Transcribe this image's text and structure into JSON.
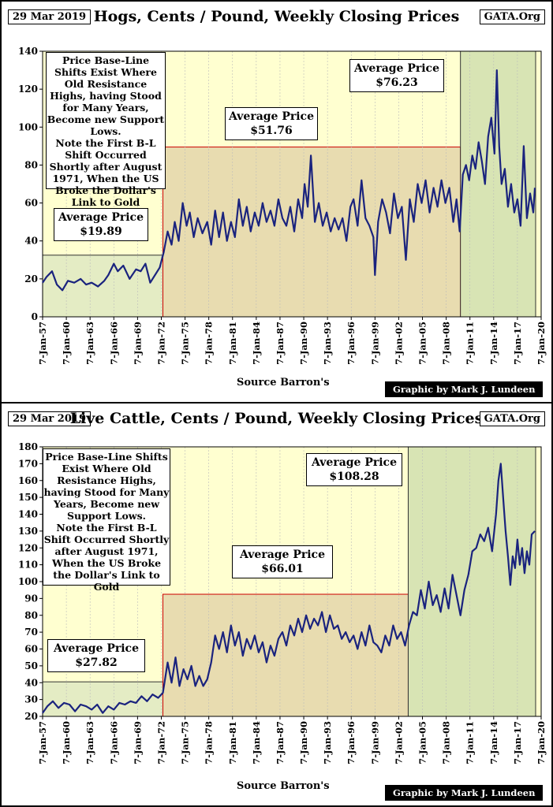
{
  "chart_data": [
    {
      "type": "line",
      "title": "Hogs, Cents / Pound, Weekly Closing Prices",
      "date_label": "29 Mar 2019",
      "site_label": "GATA.Org",
      "ylim": [
        0,
        140
      ],
      "yticks": [
        0,
        20,
        40,
        60,
        80,
        100,
        120,
        140
      ],
      "xlim": [
        1957,
        2020
      ],
      "xticks": [
        "7-Jan-57",
        "7-Jan-60",
        "7-Jan-63",
        "7-Jan-66",
        "7-Jan-69",
        "7-Jan-72",
        "7-Jan-75",
        "7-Jan-78",
        "7-Jan-81",
        "7-Jan-84",
        "7-Jan-87",
        "7-Jan-90",
        "7-Jan-93",
        "7-Jan-96",
        "7-Jan-99",
        "7-Jan-02",
        "7-Jan-05",
        "7-Jan-08",
        "7-Jan-11",
        "7-Jan-14",
        "7-Jan-17",
        "7-Jan-20"
      ],
      "xlabel": "Source Barron's",
      "credit": "Graphic by Mark J. Lundeen",
      "note": "Price Base-Line Shifts Exist Where Old Resistance Highs, having Stood for Many Years, Become new Support Lows.\nNote the First B-L Shift Occurred Shortly after August 1971, When the US Broke the Dollar's Link to Gold",
      "regions": [
        {
          "label": "Average Price",
          "value": "$19.89",
          "x0": 1957,
          "x1": 1972.2,
          "top": 32.5,
          "color": "#e4ecc4"
        },
        {
          "label": "Average Price",
          "value": "$51.76",
          "x0": 1972.2,
          "x1": 2009.8,
          "top": 89.5,
          "color": "#e8dcb0"
        },
        {
          "label": "Average Price",
          "value": "$76.23",
          "x0": 2009.8,
          "x1": 2019.3,
          "top": 140,
          "color": "#d8e4b4"
        }
      ],
      "series": [
        {
          "color": "#1a237e",
          "x": [
            1957,
            1957.5,
            1958.2,
            1958.8,
            1959.5,
            1960.2,
            1961,
            1961.8,
            1962.5,
            1963.2,
            1964,
            1964.8,
            1965.3,
            1966,
            1966.5,
            1967.2,
            1968,
            1968.8,
            1969.4,
            1970,
            1970.6,
            1971.2,
            1971.8,
            1972.3,
            1972.8,
            1973.3,
            1973.7,
            1974.2,
            1974.7,
            1975.2,
            1975.6,
            1976.1,
            1976.6,
            1977.2,
            1977.8,
            1978.3,
            1978.8,
            1979.3,
            1979.8,
            1980.3,
            1980.8,
            1981.3,
            1981.8,
            1982.3,
            1982.8,
            1983.3,
            1983.8,
            1984.3,
            1984.8,
            1985.3,
            1985.8,
            1986.3,
            1986.8,
            1987.3,
            1987.8,
            1988.3,
            1988.8,
            1989.3,
            1989.8,
            1990.1,
            1990.5,
            1990.9,
            1991.4,
            1991.9,
            1992.4,
            1992.9,
            1993.4,
            1993.9,
            1994.4,
            1994.9,
            1995.4,
            1995.9,
            1996.3,
            1996.8,
            1997.3,
            1997.8,
            1998.3,
            1998.8,
            1999.0,
            1999.4,
            1999.9,
            2000.4,
            2000.9,
            2001.4,
            2001.9,
            2002.4,
            2002.9,
            2003.4,
            2003.9,
            2004.4,
            2004.9,
            2005.4,
            2005.9,
            2006.4,
            2006.9,
            2007.4,
            2007.9,
            2008.4,
            2008.9,
            2009.3,
            2009.7,
            2010.1,
            2010.5,
            2010.9,
            2011.3,
            2011.7,
            2012.1,
            2012.5,
            2012.9,
            2013.3,
            2013.7,
            2014.1,
            2014.4,
            2014.7,
            2015.0,
            2015.4,
            2015.8,
            2016.2,
            2016.6,
            2017.0,
            2017.4,
            2017.8,
            2018.2,
            2018.6,
            2019.0,
            2019.2
          ],
          "y": [
            18,
            21,
            24,
            17,
            14,
            19,
            18,
            20,
            17,
            18,
            16,
            19,
            22,
            28,
            24,
            27,
            20,
            25,
            24,
            28,
            18,
            22,
            26,
            34,
            45,
            38,
            50,
            40,
            60,
            48,
            55,
            42,
            52,
            44,
            50,
            38,
            56,
            42,
            55,
            40,
            50,
            42,
            62,
            48,
            58,
            45,
            55,
            48,
            60,
            50,
            56,
            48,
            62,
            52,
            48,
            58,
            45,
            62,
            52,
            70,
            58,
            85,
            50,
            60,
            48,
            55,
            45,
            52,
            46,
            52,
            40,
            58,
            62,
            48,
            72,
            52,
            48,
            42,
            22,
            50,
            62,
            55,
            44,
            65,
            52,
            58,
            30,
            62,
            50,
            70,
            60,
            72,
            55,
            68,
            58,
            72,
            60,
            68,
            50,
            62,
            45,
            75,
            80,
            72,
            85,
            78,
            92,
            82,
            70,
            95,
            105,
            86,
            130,
            90,
            70,
            78,
            58,
            70,
            55,
            62,
            48,
            90,
            52,
            65,
            55,
            68
          ]
        }
      ]
    },
    {
      "type": "line",
      "title": "Live Cattle, Cents / Pound, Weekly Closing Prices",
      "date_label": "29 Mar 2019",
      "site_label": "GATA.Org",
      "ylim": [
        20,
        180
      ],
      "yticks": [
        20,
        30,
        40,
        50,
        60,
        70,
        80,
        90,
        100,
        110,
        120,
        130,
        140,
        150,
        160,
        170,
        180
      ],
      "xlim": [
        1957,
        2020
      ],
      "xticks": [
        "7-Jan-57",
        "7-Jan-60",
        "7-Jan-63",
        "7-Jan-66",
        "7-Jan-69",
        "7-Jan-72",
        "7-Jan-75",
        "7-Jan-78",
        "7-Jan-81",
        "7-Jan-84",
        "7-Jan-87",
        "7-Jan-90",
        "7-Jan-93",
        "7-Jan-96",
        "7-Jan-99",
        "7-Jan-02",
        "7-Jan-05",
        "7-Jan-08",
        "7-Jan-11",
        "7-Jan-14",
        "7-Jan-17",
        "7-Jan-20"
      ],
      "xlabel": "Source Barron's",
      "credit": "Graphic by Mark J. Lundeen",
      "note": "Price Base-Line Shifts Exist Where Old Resistance Highs, having Stood for Many Years, Become new Support Lows.\nNote the First B-L Shift Occurred Shortly after August 1971, When the US Broke the Dollar's Link to Gold",
      "regions": [
        {
          "label": "Average Price",
          "value": "$27.82",
          "x0": 1957,
          "x1": 1972.2,
          "top": 40.5,
          "color": "#e4ecc4"
        },
        {
          "label": "Average Price",
          "value": "$66.01",
          "x0": 1972.2,
          "x1": 2003.2,
          "top": 92.5,
          "color": "#e8dcb0"
        },
        {
          "label": "Average Price",
          "value": "$108.28",
          "x0": 2003.2,
          "x1": 2019.3,
          "top": 180,
          "color": "#d8e4b4"
        }
      ],
      "series": [
        {
          "color": "#1a237e",
          "x": [
            1957,
            1957.6,
            1958.3,
            1959,
            1959.7,
            1960.4,
            1961.1,
            1961.8,
            1962.5,
            1963.2,
            1963.9,
            1964.6,
            1965.3,
            1966,
            1966.7,
            1967.4,
            1968.1,
            1968.8,
            1969.5,
            1970.2,
            1970.9,
            1971.6,
            1972.2,
            1972.8,
            1973.3,
            1973.8,
            1974.3,
            1974.8,
            1975.3,
            1975.8,
            1976.3,
            1976.8,
            1977.3,
            1977.8,
            1978.3,
            1978.8,
            1979.3,
            1979.8,
            1980.3,
            1980.8,
            1981.3,
            1981.8,
            1982.3,
            1982.8,
            1983.3,
            1983.8,
            1984.3,
            1984.8,
            1985.3,
            1985.8,
            1986.3,
            1986.8,
            1987.3,
            1987.8,
            1988.3,
            1988.8,
            1989.3,
            1989.8,
            1990.3,
            1990.8,
            1991.3,
            1991.8,
            1992.3,
            1992.8,
            1993.3,
            1993.8,
            1994.3,
            1994.8,
            1995.3,
            1995.8,
            1996.3,
            1996.8,
            1997.3,
            1997.8,
            1998.3,
            1998.8,
            1999.3,
            1999.8,
            2000.3,
            2000.8,
            2001.3,
            2001.8,
            2002.3,
            2002.8,
            2003.3,
            2003.8,
            2004.3,
            2004.8,
            2005.3,
            2005.8,
            2006.3,
            2006.8,
            2007.3,
            2007.8,
            2008.3,
            2008.8,
            2009.3,
            2009.8,
            2010.3,
            2010.8,
            2011.3,
            2011.8,
            2012.3,
            2012.8,
            2013.3,
            2013.8,
            2014.3,
            2014.6,
            2014.9,
            2015.2,
            2015.5,
            2015.8,
            2016.1,
            2016.4,
            2016.7,
            2017.0,
            2017.3,
            2017.6,
            2017.9,
            2018.2,
            2018.5,
            2018.8,
            2019.2
          ],
          "y": [
            22,
            26,
            29,
            25,
            28,
            27,
            23,
            27,
            26,
            24,
            27,
            22,
            26,
            24,
            28,
            27,
            29,
            28,
            32,
            29,
            33,
            31,
            34,
            52,
            40,
            55,
            38,
            48,
            42,
            50,
            38,
            44,
            38,
            42,
            52,
            68,
            60,
            70,
            58,
            74,
            62,
            70,
            56,
            66,
            60,
            68,
            58,
            64,
            52,
            62,
            56,
            66,
            70,
            62,
            74,
            68,
            78,
            70,
            80,
            72,
            78,
            74,
            82,
            70,
            80,
            72,
            74,
            66,
            70,
            64,
            68,
            60,
            70,
            62,
            74,
            64,
            62,
            58,
            68,
            62,
            74,
            66,
            70,
            62,
            74,
            82,
            80,
            95,
            84,
            100,
            86,
            92,
            82,
            96,
            84,
            104,
            92,
            80,
            95,
            104,
            118,
            120,
            128,
            124,
            132,
            118,
            140,
            160,
            170,
            150,
            130,
            115,
            98,
            115,
            108,
            125,
            110,
            120,
            105,
            118,
            110,
            128,
            130
          ]
        }
      ]
    }
  ]
}
